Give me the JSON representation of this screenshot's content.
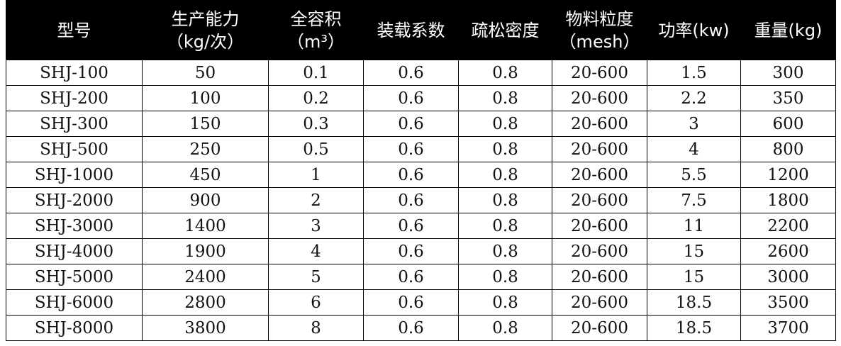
{
  "table": {
    "header": [
      [
        "型号"
      ],
      [
        "生产能力",
        "（kg/次）"
      ],
      [
        "全容积",
        "（m³）"
      ],
      [
        "装载系数"
      ],
      [
        "疏松密度"
      ],
      [
        "物料粒度",
        "（mesh）"
      ],
      [
        "功率(kw)"
      ],
      [
        "重量(kg)"
      ]
    ],
    "rows": [
      [
        "SHJ-100",
        "50",
        "0.1",
        "0.6",
        "0.8",
        "20-600",
        "1.5",
        "300"
      ],
      [
        "SHJ-200",
        "100",
        "0.2",
        "0.6",
        "0.8",
        "20-600",
        "2.2",
        "350"
      ],
      [
        "SHJ-300",
        "150",
        "0.3",
        "0.6",
        "0.8",
        "20-600",
        "3",
        "600"
      ],
      [
        "SHJ-500",
        "250",
        "0.5",
        "0.6",
        "0.8",
        "20-600",
        "4",
        "800"
      ],
      [
        "SHJ-1000",
        "450",
        "1",
        "0.6",
        "0.8",
        "20-600",
        "5.5",
        "1200"
      ],
      [
        "SHJ-2000",
        "900",
        "2",
        "0.6",
        "0.8",
        "20-600",
        "7.5",
        "1800"
      ],
      [
        "SHJ-3000",
        "1400",
        "3",
        "0.6",
        "0.8",
        "20-600",
        "11",
        "2200"
      ],
      [
        "SHJ-4000",
        "1900",
        "4",
        "0.6",
        "0.8",
        "20-600",
        "15",
        "2600"
      ],
      [
        "SHJ-5000",
        "2400",
        "5",
        "0.6",
        "0.8",
        "20-600",
        "15",
        "3000"
      ],
      [
        "SHJ-6000",
        "2800",
        "6",
        "0.6",
        "0.8",
        "20-600",
        "18.5",
        "3500"
      ],
      [
        "SHJ-8000",
        "3800",
        "8",
        "0.6",
        "0.8",
        "20-600",
        "18.5",
        "3700"
      ]
    ]
  }
}
